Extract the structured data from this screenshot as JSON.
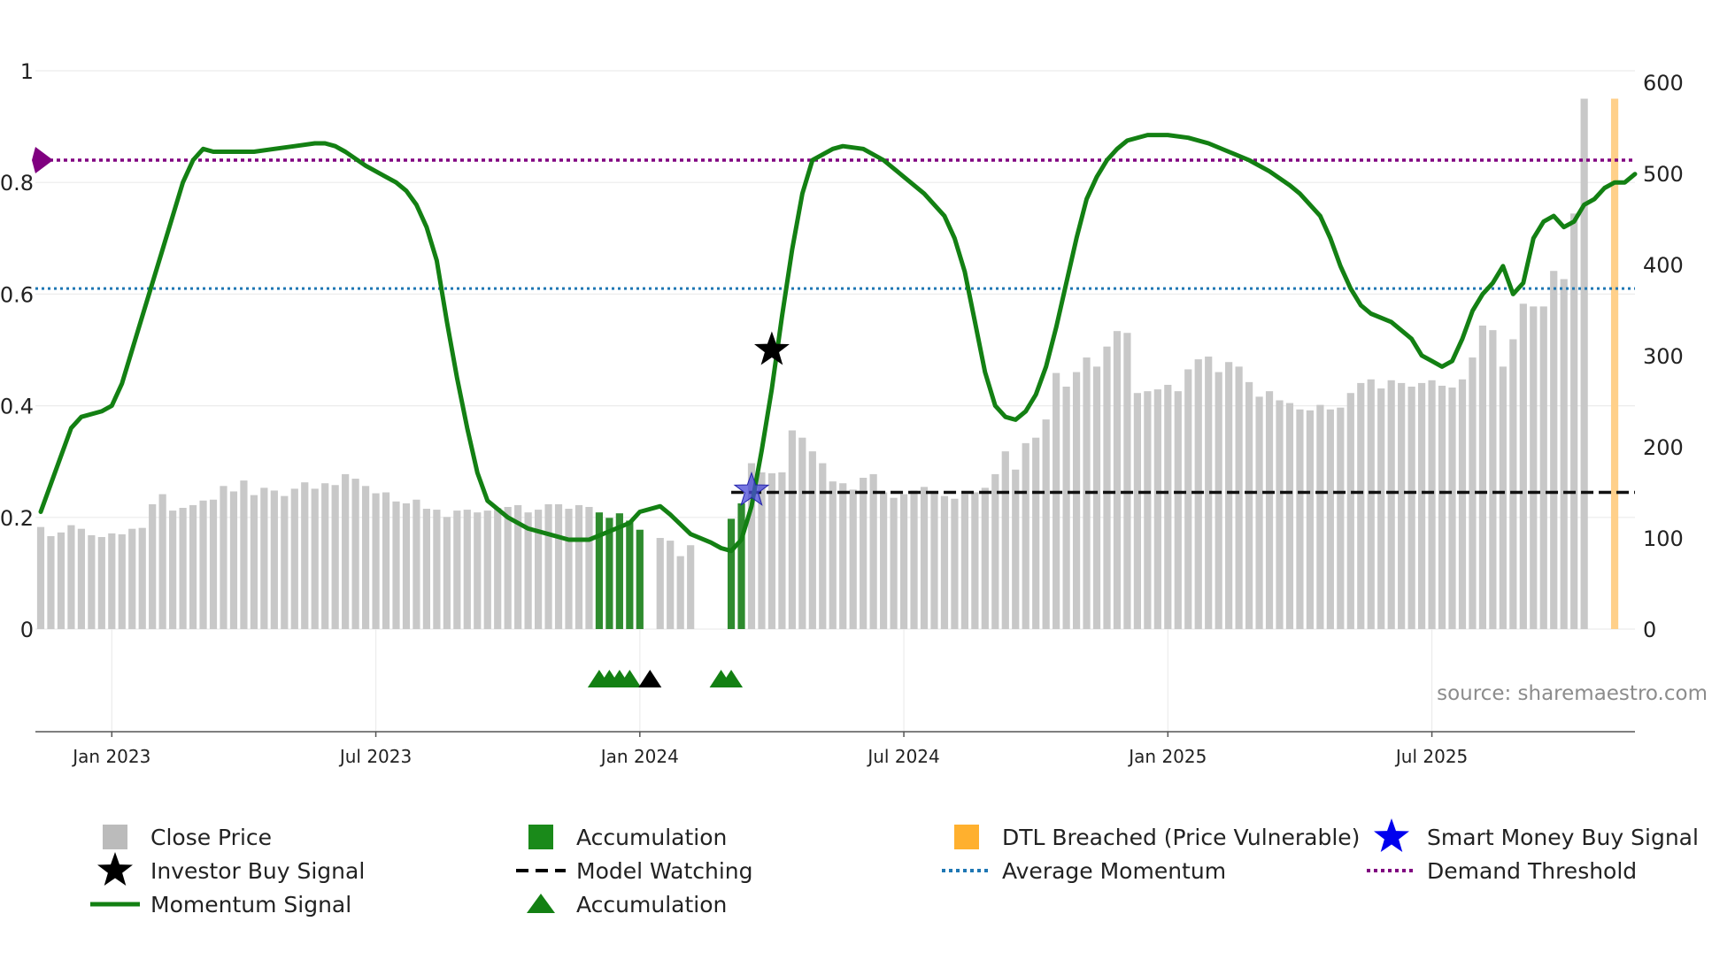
{
  "chart_data": {
    "type": "bar+line",
    "source_note": "source: sharemaestro.com",
    "left_axis": {
      "ylim": [
        0,
        1
      ],
      "ticks": [
        0,
        0.2,
        0.4,
        0.6,
        0.8,
        1
      ],
      "tick_labels": [
        "0",
        "0.2",
        "0.4",
        "0.6",
        "0.8",
        "1"
      ]
    },
    "right_axis": {
      "ylim": [
        0,
        600
      ],
      "ticks": [
        0,
        100,
        200,
        300,
        400,
        500,
        600
      ],
      "tick_labels": [
        "0",
        "100",
        "200",
        "300",
        "400",
        "500",
        "600"
      ]
    },
    "x_axis": {
      "start_week": 0,
      "end_week": 157,
      "ticks": [
        {
          "week": 7,
          "label": "Jan 2023"
        },
        {
          "week": 33,
          "label": "Jul 2023"
        },
        {
          "week": 59,
          "label": "Jan 2024"
        },
        {
          "week": 85,
          "label": "Jul 2024"
        },
        {
          "week": 111,
          "label": "Jan 2025"
        },
        {
          "week": 137,
          "label": "Jul 2025"
        }
      ]
    },
    "close_price": [
      112,
      102,
      106,
      114,
      110,
      103,
      101,
      105,
      104,
      110,
      111,
      137,
      148,
      130,
      133,
      136,
      141,
      142,
      157,
      151,
      163,
      147,
      155,
      152,
      146,
      154,
      161,
      154,
      160,
      158,
      170,
      165,
      157,
      149,
      150,
      140,
      138,
      142,
      132,
      131,
      123,
      130,
      131,
      128,
      130,
      133,
      134,
      136,
      128,
      131,
      137,
      137,
      132,
      136,
      134,
      0,
      0,
      0,
      0,
      0,
      0,
      100,
      97,
      80,
      92,
      0,
      0,
      0,
      0,
      0,
      182,
      172,
      171,
      172,
      218,
      210,
      195,
      182,
      162,
      160,
      153,
      166,
      170,
      150,
      144,
      148,
      152,
      156,
      150,
      146,
      143,
      148,
      150,
      155,
      170,
      195,
      175,
      204,
      210,
      230,
      281,
      266,
      282,
      298,
      288,
      310,
      327,
      325,
      259,
      261,
      263,
      268,
      261,
      285,
      296,
      299,
      282,
      293,
      288,
      271,
      255,
      261,
      251,
      248,
      241,
      240,
      246,
      241,
      243,
      259,
      270,
      274,
      264,
      273,
      270,
      266,
      270,
      273,
      267,
      265,
      274,
      298,
      333,
      328,
      288,
      318,
      357,
      354,
      354,
      393,
      384,
      456,
      582
    ],
    "accumulation_bars": [
      {
        "week": 55,
        "value": 128
      },
      {
        "week": 56,
        "value": 122
      },
      {
        "week": 57,
        "value": 127
      },
      {
        "week": 58,
        "value": 119
      },
      {
        "week": 59,
        "value": 109
      },
      {
        "week": 68,
        "value": 121
      },
      {
        "week": 69,
        "value": 138
      }
    ],
    "dtl_breached_bars": [
      {
        "week": 155,
        "value": 582
      }
    ],
    "momentum": [
      [
        0,
        0.21
      ],
      [
        2,
        0.31
      ],
      [
        3,
        0.36
      ],
      [
        4,
        0.38
      ],
      [
        6,
        0.39
      ],
      [
        7,
        0.4
      ],
      [
        8,
        0.44
      ],
      [
        10,
        0.56
      ],
      [
        12,
        0.68
      ],
      [
        14,
        0.8
      ],
      [
        15,
        0.84
      ],
      [
        16,
        0.86
      ],
      [
        17,
        0.855
      ],
      [
        19,
        0.855
      ],
      [
        21,
        0.855
      ],
      [
        23,
        0.86
      ],
      [
        25,
        0.865
      ],
      [
        27,
        0.87
      ],
      [
        28,
        0.87
      ],
      [
        29,
        0.865
      ],
      [
        30,
        0.855
      ],
      [
        32,
        0.83
      ],
      [
        34,
        0.81
      ],
      [
        35,
        0.8
      ],
      [
        36,
        0.785
      ],
      [
        37,
        0.76
      ],
      [
        38,
        0.72
      ],
      [
        39,
        0.66
      ],
      [
        40,
        0.55
      ],
      [
        41,
        0.45
      ],
      [
        42,
        0.36
      ],
      [
        43,
        0.28
      ],
      [
        44,
        0.23
      ],
      [
        46,
        0.2
      ],
      [
        48,
        0.18
      ],
      [
        50,
        0.17
      ],
      [
        52,
        0.16
      ],
      [
        54,
        0.16
      ],
      [
        56,
        0.175
      ],
      [
        58,
        0.19
      ],
      [
        59,
        0.21
      ],
      [
        61,
        0.22
      ],
      [
        62,
        0.205
      ],
      [
        64,
        0.17
      ],
      [
        66,
        0.155
      ],
      [
        67,
        0.145
      ],
      [
        68,
        0.14
      ],
      [
        69,
        0.16
      ],
      [
        70,
        0.22
      ],
      [
        71,
        0.32
      ],
      [
        72,
        0.43
      ],
      [
        73,
        0.56
      ],
      [
        74,
        0.68
      ],
      [
        75,
        0.78
      ],
      [
        76,
        0.84
      ],
      [
        78,
        0.86
      ],
      [
        79,
        0.865
      ],
      [
        81,
        0.86
      ],
      [
        83,
        0.84
      ],
      [
        85,
        0.81
      ],
      [
        87,
        0.78
      ],
      [
        89,
        0.74
      ],
      [
        90,
        0.7
      ],
      [
        91,
        0.64
      ],
      [
        92,
        0.55
      ],
      [
        93,
        0.46
      ],
      [
        94,
        0.4
      ],
      [
        95,
        0.38
      ],
      [
        96,
        0.375
      ],
      [
        97,
        0.39
      ],
      [
        98,
        0.42
      ],
      [
        99,
        0.47
      ],
      [
        100,
        0.54
      ],
      [
        101,
        0.62
      ],
      [
        102,
        0.7
      ],
      [
        103,
        0.77
      ],
      [
        104,
        0.81
      ],
      [
        105,
        0.84
      ],
      [
        106,
        0.86
      ],
      [
        107,
        0.875
      ],
      [
        109,
        0.885
      ],
      [
        111,
        0.885
      ],
      [
        113,
        0.88
      ],
      [
        115,
        0.87
      ],
      [
        117,
        0.855
      ],
      [
        119,
        0.84
      ],
      [
        121,
        0.82
      ],
      [
        123,
        0.795
      ],
      [
        124,
        0.78
      ],
      [
        125,
        0.76
      ],
      [
        126,
        0.74
      ],
      [
        127,
        0.7
      ],
      [
        128,
        0.65
      ],
      [
        129,
        0.61
      ],
      [
        130,
        0.58
      ],
      [
        131,
        0.565
      ],
      [
        133,
        0.55
      ],
      [
        135,
        0.52
      ],
      [
        136,
        0.49
      ],
      [
        137,
        0.48
      ],
      [
        138,
        0.47
      ],
      [
        139,
        0.48
      ],
      [
        140,
        0.52
      ],
      [
        141,
        0.57
      ],
      [
        142,
        0.6
      ],
      [
        143,
        0.62
      ],
      [
        144,
        0.65
      ],
      [
        145,
        0.6
      ],
      [
        146,
        0.62
      ],
      [
        147,
        0.7
      ],
      [
        148,
        0.73
      ],
      [
        149,
        0.74
      ],
      [
        150,
        0.72
      ],
      [
        151,
        0.73
      ],
      [
        152,
        0.76
      ],
      [
        153,
        0.77
      ],
      [
        154,
        0.79
      ],
      [
        155,
        0.8
      ],
      [
        156,
        0.8
      ],
      [
        157,
        0.815
      ]
    ],
    "average_momentum": 0.61,
    "demand_threshold": 0.84,
    "model_watching": {
      "from_week": 68,
      "to_week": 157,
      "price": 150
    },
    "investor_buy_signal": {
      "week": 72,
      "momentum": 0.5
    },
    "smart_money_buy_signal": {
      "week": 70,
      "price": 152
    },
    "accumulation_triangles": [
      55,
      56,
      57,
      58,
      67,
      68
    ],
    "watch_triangles": [
      60
    ],
    "legend": [
      {
        "label": "Close Price",
        "symbol": "square",
        "color": "#bbbbbb"
      },
      {
        "label": "Accumulation",
        "symbol": "square",
        "color": "#1a8a1a"
      },
      {
        "label": "DTL Breached (Price Vulnerable)",
        "symbol": "square",
        "color": "#ffb02e"
      },
      {
        "label": "Smart Money Buy Signal",
        "symbol": "star",
        "color": "#0000ee"
      },
      {
        "label": "Investor Buy Signal",
        "symbol": "star",
        "color": "#000000"
      },
      {
        "label": "Model Watching",
        "symbol": "dash",
        "color": "#000000"
      },
      {
        "label": "Average Momentum",
        "symbol": "dot",
        "color": "#1f77b4"
      },
      {
        "label": "Demand Threshold",
        "symbol": "dot",
        "color": "#800080"
      },
      {
        "label": "Momentum Signal",
        "symbol": "line",
        "color": "#138013"
      },
      {
        "label": "Accumulation",
        "symbol": "triangle",
        "color": "#138013"
      }
    ]
  }
}
